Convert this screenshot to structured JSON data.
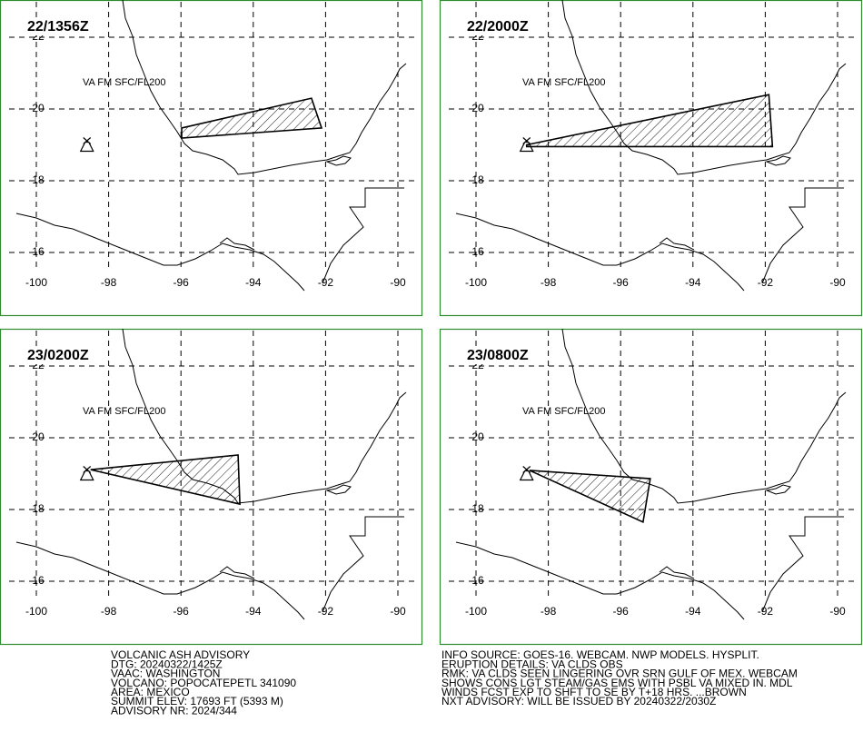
{
  "panels": [
    {
      "time": "22/1356Z",
      "level": "VA FM SFC/FL200",
      "polygon": [
        [
          -95.98,
          19.47
        ],
        [
          -92.39,
          20.3
        ],
        [
          -92.11,
          19.47
        ],
        [
          -95.98,
          19.19
        ]
      ]
    },
    {
      "time": "22/2000Z",
      "level": "VA FM SFC/FL200",
      "polygon": [
        [
          -98.6,
          19.0
        ],
        [
          -91.9,
          20.4
        ],
        [
          -91.8,
          18.95
        ],
        [
          -98.6,
          18.95
        ]
      ]
    },
    {
      "time": "23/0200Z",
      "level": "VA FM SFC/FL200",
      "polygon": [
        [
          -98.5,
          19.11
        ],
        [
          -94.42,
          19.52
        ],
        [
          -94.37,
          18.15
        ]
      ]
    },
    {
      "time": "23/0800Z",
      "level": "VA FM SFC/FL200",
      "polygon": [
        [
          -98.52,
          19.09
        ],
        [
          -95.18,
          18.86
        ],
        [
          -95.38,
          17.65
        ]
      ]
    }
  ],
  "lon_ticks": [
    -100,
    -98,
    -96,
    -94,
    -92,
    -90
  ],
  "lat_ticks": [
    22,
    20,
    18,
    16
  ],
  "volcano": [
    -98.6,
    19.0
  ],
  "advisory_left": [
    "VOLCANIC ASH ADVISORY",
    "DTG: 20240322/1425Z",
    "VAAC: WASHINGTON",
    "VOLCANO: POPOCATEPETL 341090",
    "AREA: MEXICO",
    "SUMMIT ELEV: 17693 FT (5393 M)",
    "ADVISORY NR: 2024/344"
  ],
  "advisory_right": [
    "INFO SOURCE: GOES-16. WEBCAM. NWP MODELS. HYSPLIT.",
    "ERUPTION DETAILS: VA CLDS OBS",
    "RMK: VA CLDS SEEN LINGERING OVR SRN GULF OF MEX. WEBCAM",
    "SHOWS CONS LGT STEAM/GAS EMS WITH PSBL VA MIXED IN. MDL",
    "WINDS FCST EXP TO SHFT TO SE BY T+18 HRS. ...BROWN",
    "NXT ADVISORY: WILL BE ISSUED BY 20240322/2030Z"
  ]
}
